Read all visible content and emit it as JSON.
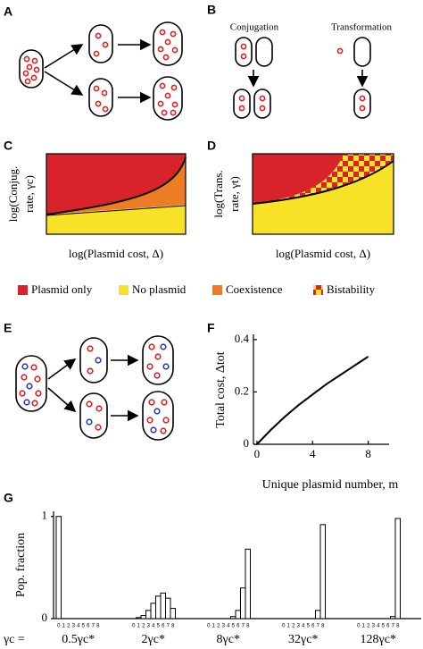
{
  "panel_labels": {
    "a": "A",
    "b": "B",
    "c": "C",
    "d": "D",
    "e": "E",
    "f": "F",
    "g": "G"
  },
  "panel_b": {
    "conjugation": "Conjugation",
    "transformation": "Transformation"
  },
  "panel_c": {
    "y_label": [
      "log(Conjug.",
      "rate, γc)"
    ],
    "x_label": "log(Plasmid cost, Δ)"
  },
  "panel_d": {
    "y_label": [
      "log(Trans.",
      "rate, γt)"
    ],
    "x_label": "log(Plasmid cost, Δ)"
  },
  "legend": [
    "Plasmid only",
    "No plasmid",
    "Coexistence",
    "Bistability"
  ],
  "chart_data": [
    {
      "type": "line",
      "x_label": "Unique plasmid number, m",
      "y_label": "Total cost, Δtot",
      "x": [
        0,
        1,
        2,
        3,
        4,
        5,
        6,
        7,
        8
      ],
      "values": [
        0,
        0.055,
        0.105,
        0.15,
        0.19,
        0.23,
        0.265,
        0.3,
        0.335
      ],
      "color": "#000000",
      "xlim": [
        -0.25,
        9.5
      ],
      "xticks": [
        0,
        4,
        8
      ],
      "ylim": [
        0,
        0.42
      ],
      "yticks": [
        0,
        0.2,
        0.4
      ]
    },
    {
      "type": "bar",
      "y_label": "Pop. fraction",
      "x_prefix": "γc =",
      "categories": [
        "0",
        "1",
        "2",
        "3",
        "4",
        "5",
        "6",
        "7",
        "8"
      ],
      "color": "#ffffff",
      "series": [
        {
          "name": "0.5γc*",
          "values": [
            1.0,
            0,
            0,
            0,
            0,
            0,
            0,
            0,
            0
          ]
        },
        {
          "name": "2γc*",
          "values": [
            0,
            0.01,
            0.03,
            0.08,
            0.15,
            0.22,
            0.25,
            0.2,
            0.1
          ]
        },
        {
          "name": "8γc*",
          "values": [
            0,
            0,
            0,
            0,
            0,
            0.02,
            0.08,
            0.3,
            0.68
          ]
        },
        {
          "name": "32γc*",
          "values": [
            0,
            0,
            0,
            0,
            0,
            0,
            0,
            0.08,
            0.92
          ]
        },
        {
          "name": "128γc*",
          "values": [
            0,
            0,
            0,
            0,
            0,
            0,
            0,
            0.02,
            0.98
          ]
        }
      ],
      "ylim": [
        0,
        1.05
      ],
      "yticks": [
        0,
        1
      ]
    }
  ]
}
